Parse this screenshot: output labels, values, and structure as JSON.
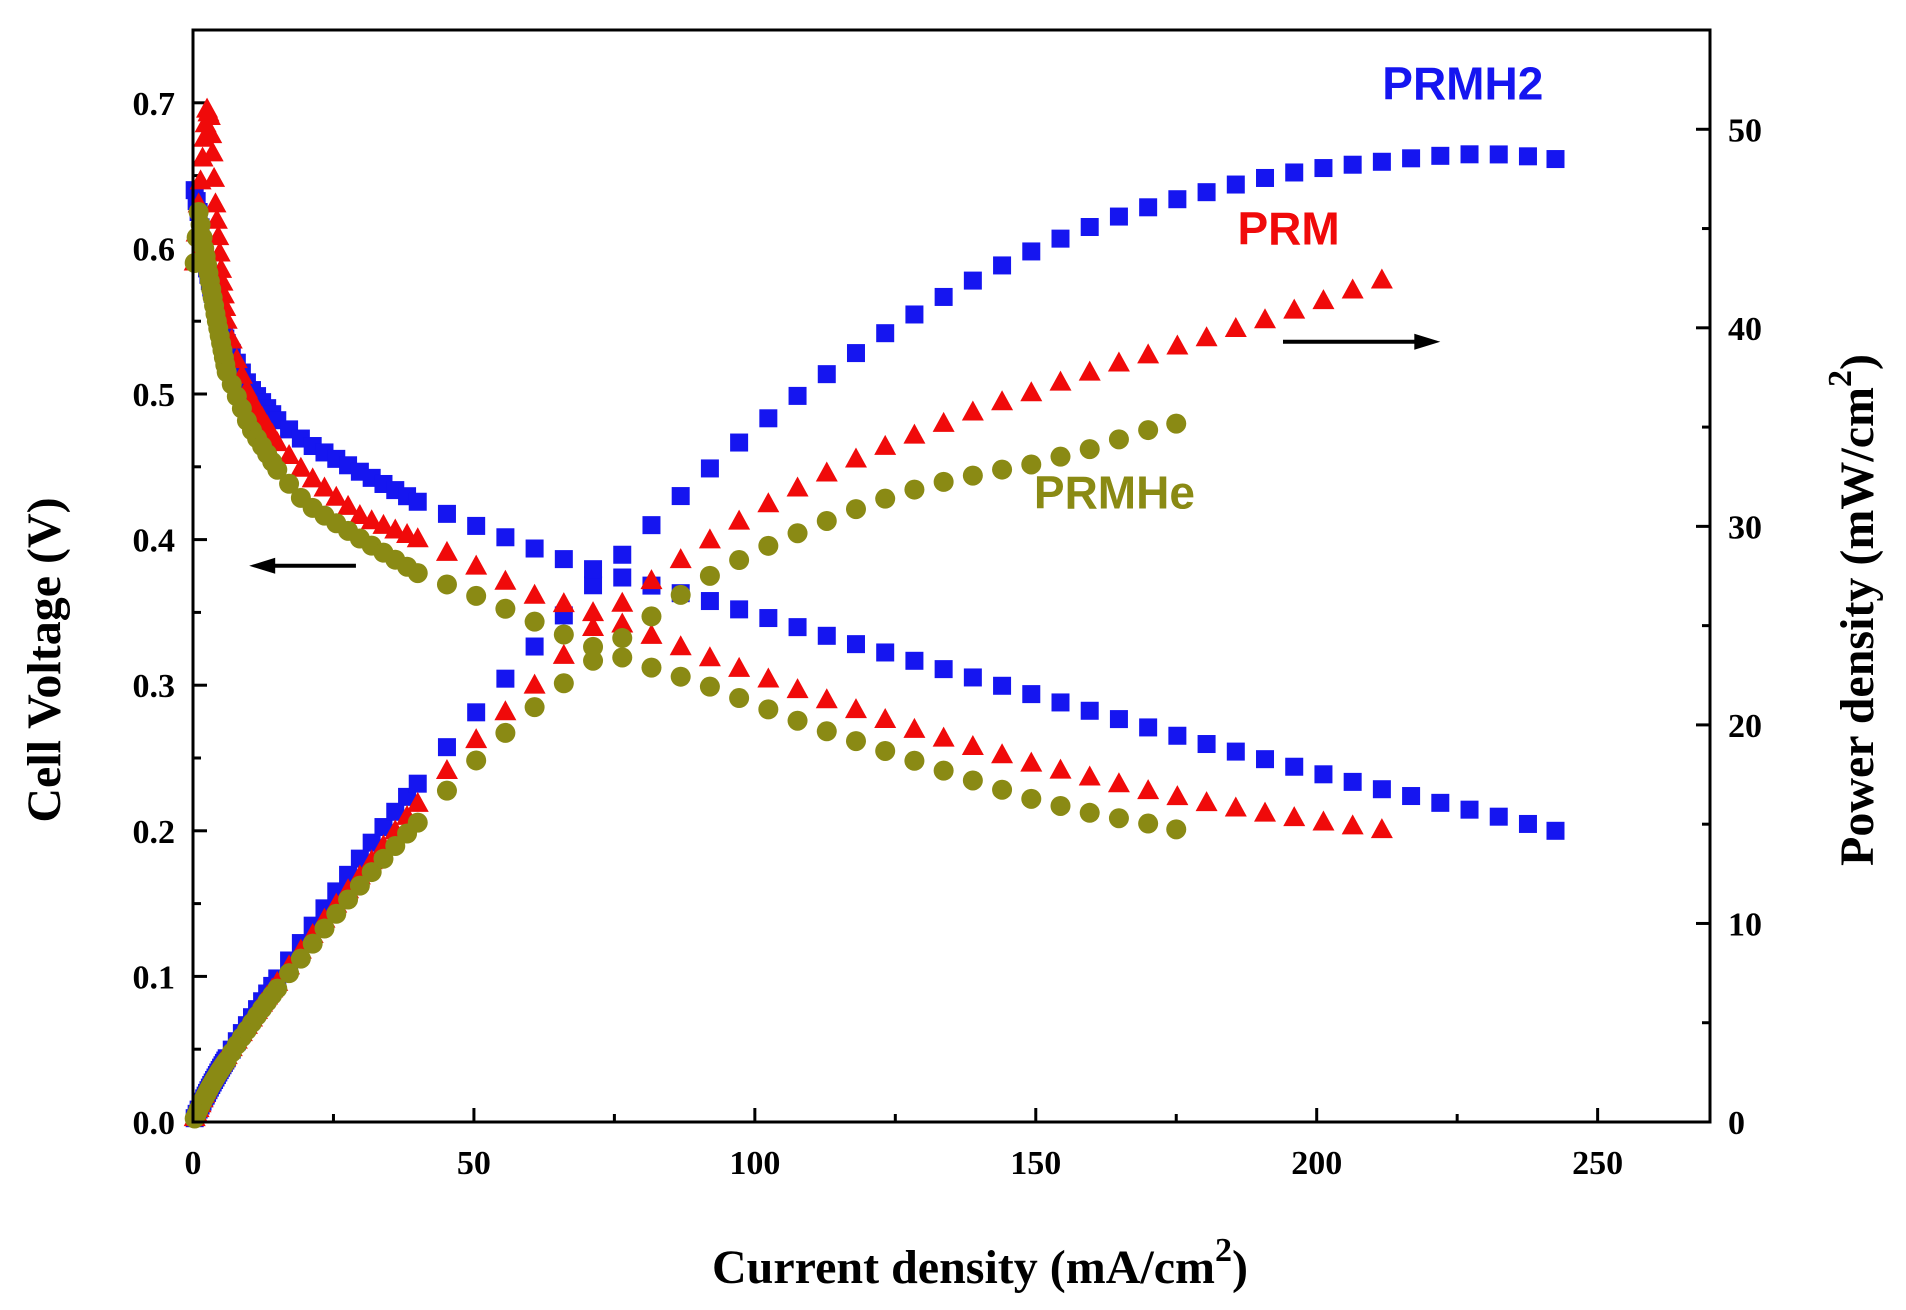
{
  "chart_data": {
    "type": "scatter",
    "title": "",
    "xlabel": "Current density (mA/cm",
    "xlabel_sup": "2",
    "xlabel_close": ")",
    "ylabel": "Cell Voltage (V)",
    "y2label": "Power density (mW/cm",
    "y2label_sup": "2",
    "y2label_close": ")",
    "xlim": [
      0,
      270
    ],
    "ylim": [
      0,
      0.75
    ],
    "y2lim": [
      0,
      55
    ],
    "xticks": [
      0,
      50,
      100,
      150,
      200,
      250
    ],
    "xtick_labels": [
      "0",
      "50",
      "100",
      "150",
      "200",
      "250"
    ],
    "yticks": [
      0.0,
      0.1,
      0.2,
      0.3,
      0.4,
      0.5,
      0.6,
      0.7
    ],
    "ytick_labels": [
      "0.0",
      "0.1",
      "0.2",
      "0.3",
      "0.4",
      "0.5",
      "0.6",
      "0.7"
    ],
    "y2ticks": [
      0,
      10,
      20,
      30,
      40,
      50
    ],
    "y2tick_labels": [
      "0",
      "10",
      "20",
      "30",
      "40",
      "50"
    ],
    "legend": "inline labels",
    "grid": false,
    "annotations": [
      {
        "text": "arrow pointing left to Cell Voltage axis",
        "x_start": 29,
        "x_end": 10,
        "y": 0.382,
        "axis": "left"
      },
      {
        "text": "arrow pointing right to Power density axis",
        "x_start": 194,
        "x_end": 222,
        "y2": 39.3,
        "axis": "right"
      }
    ],
    "series": [
      {
        "name": "PRMH2",
        "label": "PRMH2",
        "label_at": {
          "x": 226,
          "y2": 51.5
        },
        "color": "#1515f0",
        "marker": "square",
        "max_current": 242.5,
        "voltage_curve": {
          "points": [
            [
              0.3,
              0.64
            ],
            [
              1,
              0.625
            ],
            [
              2,
              0.595
            ],
            [
              4,
              0.56
            ],
            [
              6,
              0.535
            ],
            [
              10,
              0.505
            ],
            [
              15,
              0.482
            ],
            [
              20,
              0.467
            ],
            [
              30,
              0.446
            ],
            [
              40,
              0.426
            ],
            [
              50,
              0.41
            ],
            [
              60,
              0.395
            ],
            [
              70,
              0.381
            ],
            [
              80,
              0.37
            ],
            [
              90,
              0.36
            ],
            [
              100,
              0.349
            ],
            [
              110,
              0.337
            ],
            [
              120,
              0.326
            ],
            [
              130,
              0.315
            ],
            [
              140,
              0.304
            ],
            [
              150,
              0.293
            ],
            [
              160,
              0.282
            ],
            [
              170,
              0.271
            ],
            [
              180,
              0.26
            ],
            [
              190,
              0.25
            ],
            [
              200,
              0.24
            ],
            [
              210,
              0.23
            ],
            [
              220,
              0.221
            ],
            [
              230,
              0.212
            ],
            [
              242.5,
              0.2
            ]
          ]
        },
        "power_curve": {
          "peak_mW_cm2": 49.6,
          "peak_at_current": 227
        }
      },
      {
        "name": "PRM",
        "label": "PRM",
        "label_at": {
          "x": 195,
          "y2": 44.2
        },
        "color": "#f00a0a",
        "marker": "triangle",
        "max_current": 212,
        "voltage_curve": {
          "points": [
            [
              0.3,
              0.59
            ],
            [
              1,
              0.63
            ],
            [
              2,
              0.675
            ],
            [
              2.5,
              0.695
            ],
            [
              3,
              0.69
            ],
            [
              3.5,
              0.665
            ],
            [
              4,
              0.63
            ],
            [
              5,
              0.585
            ],
            [
              6,
              0.55
            ],
            [
              8,
              0.52
            ],
            [
              10,
              0.498
            ],
            [
              15,
              0.466
            ],
            [
              20,
              0.445
            ],
            [
              30,
              0.415
            ],
            [
              40,
              0.4
            ],
            [
              50,
              0.382
            ],
            [
              60,
              0.362
            ],
            [
              70,
              0.351
            ],
            [
              80,
              0.336
            ],
            [
              90,
              0.321
            ],
            [
              100,
              0.307
            ],
            [
              110,
              0.293
            ],
            [
              120,
              0.28
            ],
            [
              130,
              0.267
            ],
            [
              140,
              0.256
            ],
            [
              150,
              0.245
            ],
            [
              160,
              0.236
            ],
            [
              170,
              0.227
            ],
            [
              180,
              0.219
            ],
            [
              190,
              0.212
            ],
            [
              200,
              0.206
            ],
            [
              212,
              0.2
            ]
          ]
        },
        "power_curve": {
          "peak_mW_cm2": 42.6,
          "peak_at_current": 210
        }
      },
      {
        "name": "PRMHe",
        "label": "PRMHe",
        "label_at": {
          "x": 164,
          "y2": 30.9
        },
        "color": "#8a8a14",
        "marker": "circle",
        "max_current": 175,
        "voltage_curve": {
          "points": [
            [
              0.3,
              0.59
            ],
            [
              1,
              0.625
            ],
            [
              2,
              0.6
            ],
            [
              4,
              0.555
            ],
            [
              6,
              0.515
            ],
            [
              10,
              0.478
            ],
            [
              15,
              0.448
            ],
            [
              20,
              0.425
            ],
            [
              30,
              0.4
            ],
            [
              40,
              0.377
            ],
            [
              50,
              0.362
            ],
            [
              60,
              0.345
            ],
            [
              70,
              0.328
            ],
            [
              80,
              0.314
            ],
            [
              90,
              0.302
            ],
            [
              100,
              0.287
            ],
            [
              110,
              0.272
            ],
            [
              120,
              0.259
            ],
            [
              130,
              0.246
            ],
            [
              140,
              0.233
            ],
            [
              150,
              0.221
            ],
            [
              160,
              0.212
            ],
            [
              170,
              0.205
            ],
            [
              175,
              0.201
            ]
          ]
        },
        "power_curve": {
          "peak_mW_cm2": 35.5,
          "peak_at_current": 170
        }
      }
    ]
  }
}
